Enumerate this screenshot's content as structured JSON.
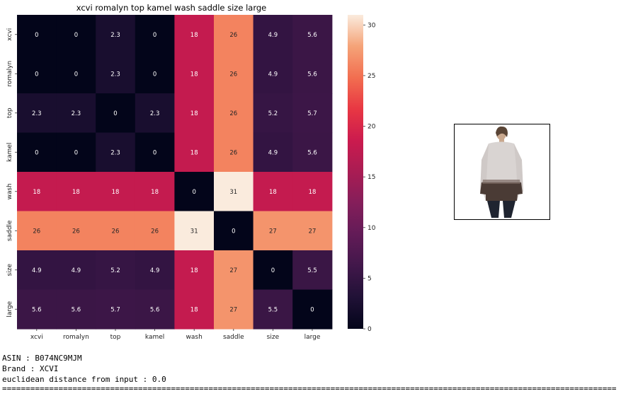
{
  "chart_data": {
    "type": "heatmap",
    "title": "xcvi romalyn top kamel wash saddle size large",
    "x_labels": [
      "xcvi",
      "romalyn",
      "top",
      "kamel",
      "wash",
      "saddle",
      "size",
      "large"
    ],
    "y_labels": [
      "xcvi",
      "romalyn",
      "top",
      "kamel",
      "wash",
      "saddle",
      "size",
      "large"
    ],
    "values": [
      [
        0,
        0,
        2.3,
        0,
        18,
        26,
        4.9,
        5.6
      ],
      [
        0,
        0,
        2.3,
        0,
        18,
        26,
        4.9,
        5.6
      ],
      [
        2.3,
        2.3,
        0,
        2.3,
        18,
        26,
        5.2,
        5.7
      ],
      [
        0,
        0,
        2.3,
        0,
        18,
        26,
        4.9,
        5.6
      ],
      [
        18,
        18,
        18,
        18,
        0,
        31,
        18,
        18
      ],
      [
        26,
        26,
        26,
        26,
        31,
        0,
        27,
        27
      ],
      [
        4.9,
        4.9,
        5.2,
        4.9,
        18,
        27,
        0,
        5.5
      ],
      [
        5.6,
        5.6,
        5.7,
        5.6,
        18,
        27,
        5.5,
        0
      ]
    ],
    "colorbar": {
      "min": 0,
      "max": 31,
      "ticks": [
        0,
        5,
        10,
        15,
        20,
        25,
        30
      ],
      "colormap": "rocket"
    }
  },
  "product": {
    "asin_text": "ASIN : B074NC9MJM",
    "brand_text": "Brand : XCVI",
    "distance_text": "euclidean distance from input : 0.0",
    "separator": "========================================================================================================================================================"
  }
}
